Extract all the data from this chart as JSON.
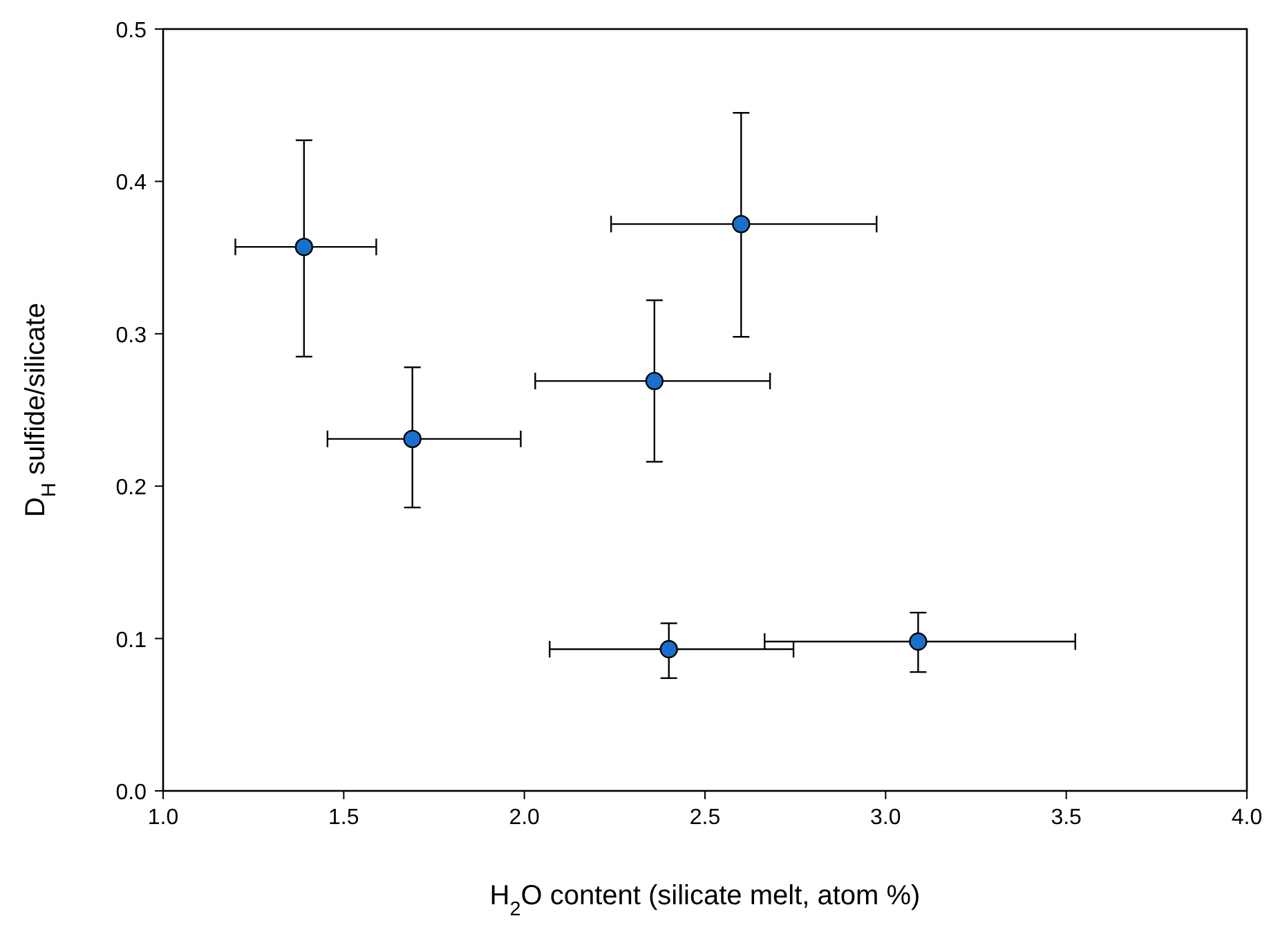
{
  "chart_data": {
    "type": "scatter",
    "xlabel": "H$_{2}$O content (silicate melt, atom %)",
    "ylabel": "D$_{H}$ sulfide/silicate",
    "x": [
      1.39,
      1.69,
      2.6,
      2.36,
      2.4,
      3.09
    ],
    "values": [
      0.357,
      0.231,
      0.372,
      0.269,
      0.093,
      0.098
    ],
    "errors": [
      [
        0.285,
        0.427
      ],
      [
        0.186,
        0.278
      ],
      [
        0.298,
        0.445
      ],
      [
        0.216,
        0.322
      ],
      [
        0.074,
        0.11
      ],
      [
        0.078,
        0.117
      ]
    ],
    "xerrors": [
      [
        1.2,
        1.59
      ],
      [
        1.455,
        1.99
      ],
      [
        2.24,
        2.975
      ],
      [
        2.03,
        2.68
      ],
      [
        2.07,
        2.745
      ],
      [
        2.665,
        3.525
      ]
    ],
    "color": "#1a6fcc",
    "marker": "circle",
    "xlim": [
      1.0,
      4.0
    ],
    "xticks": [
      {
        "value": 1,
        "label": "1.0"
      },
      {
        "value": 1.5,
        "label": "1.5"
      },
      {
        "value": 2,
        "label": "2.0"
      },
      {
        "value": 2.5,
        "label": "2.5"
      },
      {
        "value": 3,
        "label": "3.0"
      },
      {
        "value": 3.5,
        "label": "3.5"
      },
      {
        "value": 4,
        "label": "4.0"
      }
    ],
    "ylim": [
      0,
      0.5
    ],
    "yticks": [
      {
        "value": 0,
        "label": "0.0"
      },
      0.1,
      0.2,
      0.3,
      0.4,
      0.5
    ]
  }
}
